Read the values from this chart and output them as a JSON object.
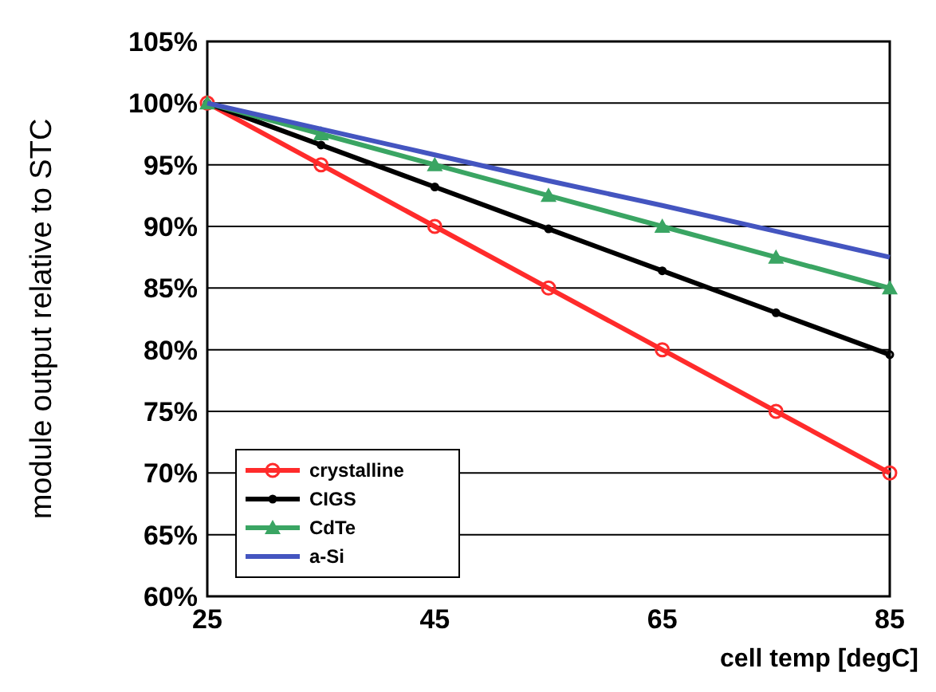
{
  "chart_data": {
    "type": "line",
    "xlabel": "cell temp [degC]",
    "ylabel": "module output relative to STC",
    "x": [
      25,
      35,
      45,
      55,
      65,
      75,
      85
    ],
    "series": [
      {
        "name": "crystalline",
        "color": "#ff2b2b",
        "marker": "circle",
        "values": [
          100,
          95,
          90,
          85,
          80,
          75,
          70
        ]
      },
      {
        "name": "CIGS",
        "color": "#000000",
        "marker": "circle",
        "values": [
          100,
          96.6,
          93.2,
          89.8,
          86.4,
          83,
          79.6
        ]
      },
      {
        "name": "CdTe",
        "color": "#3aa563",
        "marker": "triangle",
        "values": [
          100,
          97.5,
          95,
          92.5,
          90,
          87.5,
          85
        ]
      },
      {
        "name": "a-Si",
        "color": "#4455c0",
        "marker": "none",
        "values": [
          100,
          97.9,
          95.8,
          93.7,
          91.7,
          89.6,
          87.5
        ]
      }
    ],
    "xlim": [
      25,
      85
    ],
    "xticks": [
      25,
      45,
      65,
      85
    ],
    "ylim": [
      60,
      105
    ],
    "yticks": [
      {
        "value": 60,
        "label": "60%"
      },
      {
        "value": 65,
        "label": "65%"
      },
      {
        "value": 70,
        "label": "70%"
      },
      {
        "value": 75,
        "label": "75%"
      },
      {
        "value": 80,
        "label": "80%"
      },
      {
        "value": 85,
        "label": "85%"
      },
      {
        "value": 90,
        "label": "90%"
      },
      {
        "value": 95,
        "label": "95%"
      },
      {
        "value": 100,
        "label": "100%"
      },
      {
        "value": 105,
        "label": "105%"
      }
    ],
    "grid": "y",
    "legend": "bottom left"
  }
}
